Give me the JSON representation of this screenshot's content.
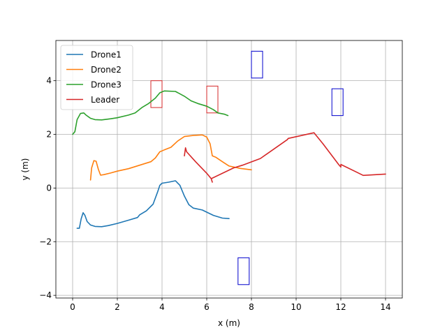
{
  "chart_data": {
    "type": "line",
    "title": "",
    "xlabel": "x (m)",
    "ylabel": "y (m)",
    "xlim": [
      -0.75,
      14.75
    ],
    "ylim": [
      -4.1,
      5.5
    ],
    "xticks": [
      0,
      2,
      4,
      6,
      8,
      10,
      12,
      14
    ],
    "yticks": [
      -4,
      -2,
      0,
      2,
      4
    ],
    "grid": true,
    "legend_position": "top-left",
    "series": [
      {
        "name": "Drone1",
        "color": "#1f77b4",
        "points": [
          [
            0.2,
            -1.5
          ],
          [
            0.3,
            -1.5
          ],
          [
            0.38,
            -1.15
          ],
          [
            0.47,
            -0.92
          ],
          [
            0.55,
            -1.02
          ],
          [
            0.65,
            -1.25
          ],
          [
            0.8,
            -1.38
          ],
          [
            1.0,
            -1.43
          ],
          [
            1.3,
            -1.44
          ],
          [
            1.6,
            -1.4
          ],
          [
            2.0,
            -1.32
          ],
          [
            2.5,
            -1.2
          ],
          [
            2.9,
            -1.1
          ],
          [
            3.0,
            -1.0
          ],
          [
            3.3,
            -0.85
          ],
          [
            3.6,
            -0.6
          ],
          [
            3.8,
            -0.15
          ],
          [
            3.9,
            0.1
          ],
          [
            4.0,
            0.18
          ],
          [
            4.3,
            0.22
          ],
          [
            4.6,
            0.27
          ],
          [
            4.8,
            0.1
          ],
          [
            5.0,
            -0.3
          ],
          [
            5.2,
            -0.62
          ],
          [
            5.4,
            -0.75
          ],
          [
            5.8,
            -0.82
          ],
          [
            6.0,
            -0.9
          ],
          [
            6.3,
            -1.02
          ],
          [
            6.7,
            -1.12
          ],
          [
            7.0,
            -1.14
          ]
        ]
      },
      {
        "name": "Drone2",
        "color": "#ff7f0e",
        "points": [
          [
            0.8,
            0.3
          ],
          [
            0.85,
            0.75
          ],
          [
            0.95,
            1.02
          ],
          [
            1.05,
            1.0
          ],
          [
            1.15,
            0.7
          ],
          [
            1.25,
            0.48
          ],
          [
            1.4,
            0.5
          ],
          [
            1.7,
            0.56
          ],
          [
            2.0,
            0.63
          ],
          [
            2.5,
            0.72
          ],
          [
            3.0,
            0.85
          ],
          [
            3.5,
            0.98
          ],
          [
            3.7,
            1.12
          ],
          [
            3.9,
            1.35
          ],
          [
            4.1,
            1.42
          ],
          [
            4.4,
            1.52
          ],
          [
            4.7,
            1.75
          ],
          [
            5.0,
            1.92
          ],
          [
            5.4,
            1.96
          ],
          [
            5.8,
            1.98
          ],
          [
            6.0,
            1.9
          ],
          [
            6.15,
            1.65
          ],
          [
            6.25,
            1.2
          ],
          [
            6.4,
            1.15
          ],
          [
            6.7,
            0.98
          ],
          [
            7.0,
            0.82
          ],
          [
            7.5,
            0.73
          ],
          [
            8.0,
            0.68
          ]
        ]
      },
      {
        "name": "Drone3",
        "color": "#2ca02c",
        "points": [
          [
            0.0,
            2.0
          ],
          [
            0.1,
            2.1
          ],
          [
            0.2,
            2.55
          ],
          [
            0.35,
            2.78
          ],
          [
            0.5,
            2.8
          ],
          [
            0.6,
            2.72
          ],
          [
            0.8,
            2.6
          ],
          [
            1.0,
            2.55
          ],
          [
            1.3,
            2.54
          ],
          [
            1.7,
            2.58
          ],
          [
            2.0,
            2.62
          ],
          [
            2.5,
            2.72
          ],
          [
            2.8,
            2.8
          ],
          [
            3.1,
            3.0
          ],
          [
            3.4,
            3.15
          ],
          [
            3.7,
            3.35
          ],
          [
            3.9,
            3.55
          ],
          [
            4.1,
            3.62
          ],
          [
            4.6,
            3.6
          ],
          [
            5.0,
            3.42
          ],
          [
            5.3,
            3.25
          ],
          [
            5.6,
            3.15
          ],
          [
            6.0,
            3.05
          ],
          [
            6.3,
            2.92
          ],
          [
            6.5,
            2.8
          ],
          [
            6.8,
            2.75
          ],
          [
            6.95,
            2.7
          ]
        ]
      },
      {
        "name": "Leader",
        "color": "#d62728",
        "points": [
          [
            5.0,
            1.2
          ],
          [
            5.05,
            1.5
          ],
          [
            5.1,
            1.35
          ],
          [
            5.5,
            0.98
          ],
          [
            6.0,
            0.55
          ],
          [
            6.2,
            0.35
          ],
          [
            6.25,
            0.22
          ],
          [
            6.2,
            0.35
          ],
          [
            7.2,
            0.75
          ],
          [
            7.6,
            0.85
          ],
          [
            8.4,
            1.1
          ],
          [
            9.6,
            1.8
          ],
          [
            9.65,
            1.85
          ],
          [
            10.8,
            2.06
          ],
          [
            11.2,
            1.65
          ],
          [
            11.9,
            0.88
          ],
          [
            12.0,
            0.78
          ],
          [
            12.0,
            0.88
          ],
          [
            13.0,
            0.47
          ],
          [
            14.0,
            0.52
          ]
        ]
      }
    ],
    "rectangles": [
      {
        "x": [
          3.5,
          4.0
        ],
        "y": [
          3.0,
          4.0
        ],
        "color": "#d62728"
      },
      {
        "x": [
          6.0,
          6.5
        ],
        "y": [
          2.8,
          3.8
        ],
        "color": "#d62728"
      },
      {
        "x": [
          8.0,
          8.5
        ],
        "y": [
          4.1,
          5.1
        ],
        "color": "#0000cc"
      },
      {
        "x": [
          11.6,
          12.1
        ],
        "y": [
          2.7,
          3.7
        ],
        "color": "#0000cc"
      },
      {
        "x": [
          7.4,
          7.9
        ],
        "y": [
          -3.6,
          -2.6
        ],
        "color": "#0000cc"
      }
    ]
  }
}
